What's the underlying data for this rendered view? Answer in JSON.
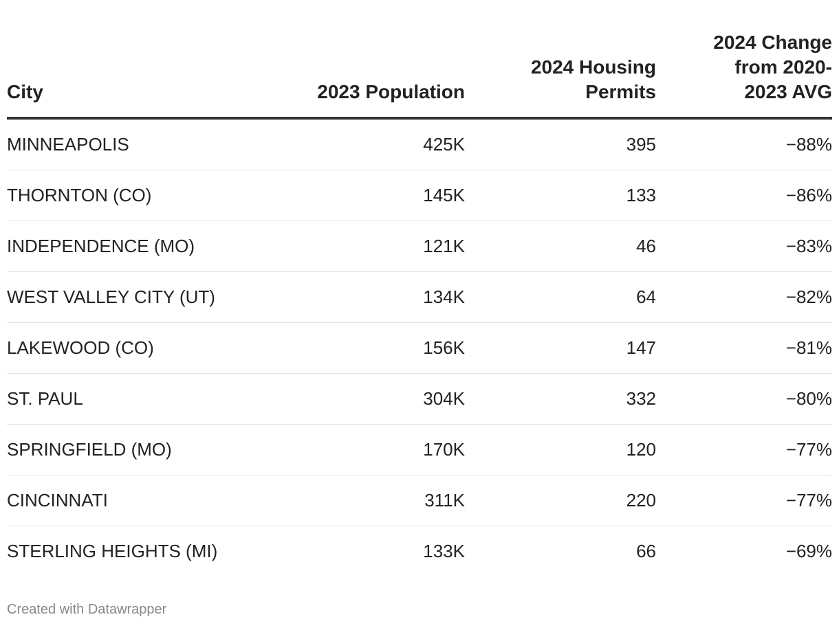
{
  "chart_data": {
    "type": "table",
    "columns": [
      "City",
      "2023 Population",
      "2024 Housing Permits",
      "2024 Change from 2020-2023 AVG"
    ],
    "header_lines": [
      [
        "City"
      ],
      [
        "2023 Population"
      ],
      [
        "2024 Housing",
        "Permits"
      ],
      [
        "2024 Change",
        "from 2020-",
        "2023 AVG"
      ]
    ],
    "rows": [
      {
        "city": "MINNEAPOLIS",
        "population": "425K",
        "permits": "395",
        "change": "−88%"
      },
      {
        "city": "THORNTON (CO)",
        "population": "145K",
        "permits": "133",
        "change": "−86%"
      },
      {
        "city": "INDEPENDENCE (MO)",
        "population": "121K",
        "permits": "46",
        "change": "−83%"
      },
      {
        "city": "WEST VALLEY CITY (UT)",
        "population": "134K",
        "permits": "64",
        "change": "−82%"
      },
      {
        "city": "LAKEWOOD (CO)",
        "population": "156K",
        "permits": "147",
        "change": "−81%"
      },
      {
        "city": "ST. PAUL",
        "population": "304K",
        "permits": "332",
        "change": "−80%"
      },
      {
        "city": "SPRINGFIELD (MO)",
        "population": "170K",
        "permits": "120",
        "change": "−77%"
      },
      {
        "city": "CINCINNATI",
        "population": "311K",
        "permits": "220",
        "change": "−77%"
      },
      {
        "city": "STERLING HEIGHTS (MI)",
        "population": "133K",
        "permits": "66",
        "change": "−69%"
      }
    ]
  },
  "footer": {
    "credit": "Created with Datawrapper"
  },
  "colors": {
    "text": "#222222",
    "header_rule": "#333333",
    "row_rule": "#e2e2e2",
    "footer_text": "#888888"
  }
}
